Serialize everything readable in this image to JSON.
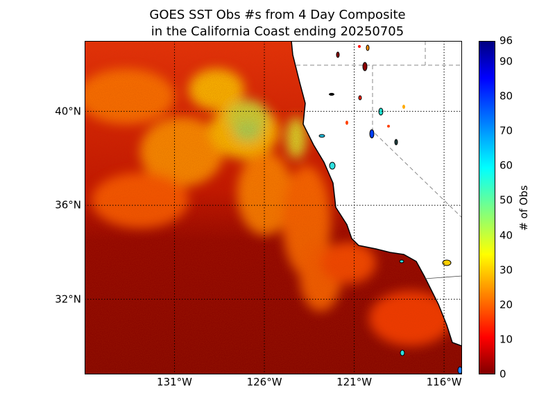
{
  "title_line1": "GOES SST Obs #s from 4 Day Composite",
  "title_line2": "in the California Coast ending 20250705",
  "map": {
    "lon_range": [
      -136,
      -115
    ],
    "lat_range": [
      28.8,
      43
    ],
    "lon_ticks": [
      {
        "value": -131,
        "label": "131°W"
      },
      {
        "value": -126,
        "label": "126°W"
      },
      {
        "value": -121,
        "label": "121°W"
      },
      {
        "value": -116,
        "label": "116°W"
      }
    ],
    "lat_ticks": [
      {
        "value": 40,
        "label": "40°N"
      },
      {
        "value": 36,
        "label": "36°N"
      },
      {
        "value": 32,
        "label": "32°N"
      }
    ],
    "gridlines": "dotted",
    "land_color": "#ffffff",
    "colormap": "jet"
  },
  "colorbar": {
    "label": "# of Obs",
    "range": [
      0,
      96
    ],
    "ticks": [
      {
        "value": 0,
        "label": "0"
      },
      {
        "value": 10,
        "label": "10"
      },
      {
        "value": 20,
        "label": "20"
      },
      {
        "value": 30,
        "label": "30"
      },
      {
        "value": 40,
        "label": "40"
      },
      {
        "value": 50,
        "label": "50"
      },
      {
        "value": 60,
        "label": "60"
      },
      {
        "value": 70,
        "label": "70"
      },
      {
        "value": 80,
        "label": "80"
      },
      {
        "value": 90,
        "label": "90"
      },
      {
        "value": 96,
        "label": "96"
      }
    ]
  }
}
